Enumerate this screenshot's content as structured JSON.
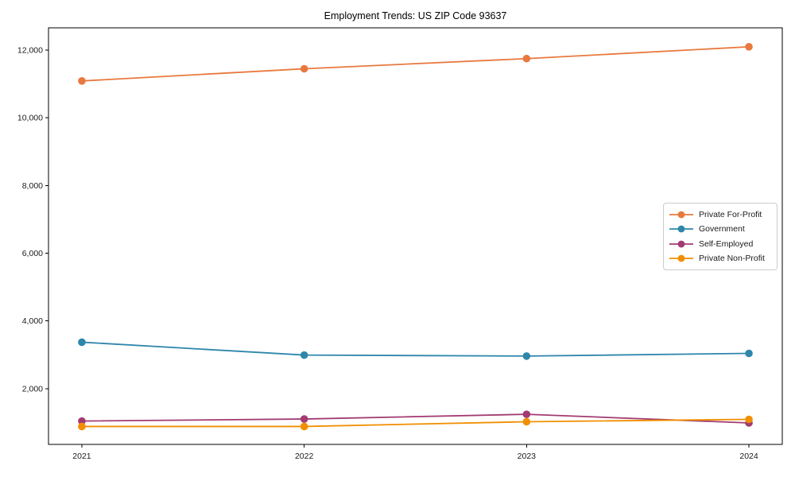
{
  "chart_data": {
    "type": "line",
    "title": "Employment Trends: US ZIP Code 93637",
    "xlabel": "",
    "ylabel": "",
    "x": [
      2021,
      2022,
      2023,
      2024
    ],
    "xtick_labels": [
      "2021",
      "2022",
      "2023",
      "2024"
    ],
    "yticks": [
      2000,
      4000,
      6000,
      8000,
      10000,
      12000
    ],
    "ytick_labels": [
      "2,000",
      "4,000",
      "6,000",
      "8,000",
      "10,000",
      "12,000"
    ],
    "xlim": [
      2020.85,
      2024.15
    ],
    "ylim": [
      350,
      12660
    ],
    "grid": false,
    "marker": "circle",
    "legend_position": "center right",
    "series": [
      {
        "name": "Private For-Profit",
        "color": "#e8793e",
        "values": [
          11090,
          11450,
          11750,
          12100
        ]
      },
      {
        "name": "Government",
        "color": "#2e86ab",
        "values": [
          3370,
          2990,
          2960,
          3040
        ]
      },
      {
        "name": "Self-Employed",
        "color": "#a23b72",
        "values": [
          1040,
          1100,
          1240,
          985
        ]
      },
      {
        "name": "Private Non-Profit",
        "color": "#f18f01",
        "values": [
          880,
          880,
          1020,
          1090
        ]
      }
    ]
  },
  "frame": {
    "background": "#ffffff",
    "spine_color": "#000000",
    "tick_color": "#000000",
    "text_color": "#1a1a1a",
    "legend_border_color": "#cccccc"
  }
}
